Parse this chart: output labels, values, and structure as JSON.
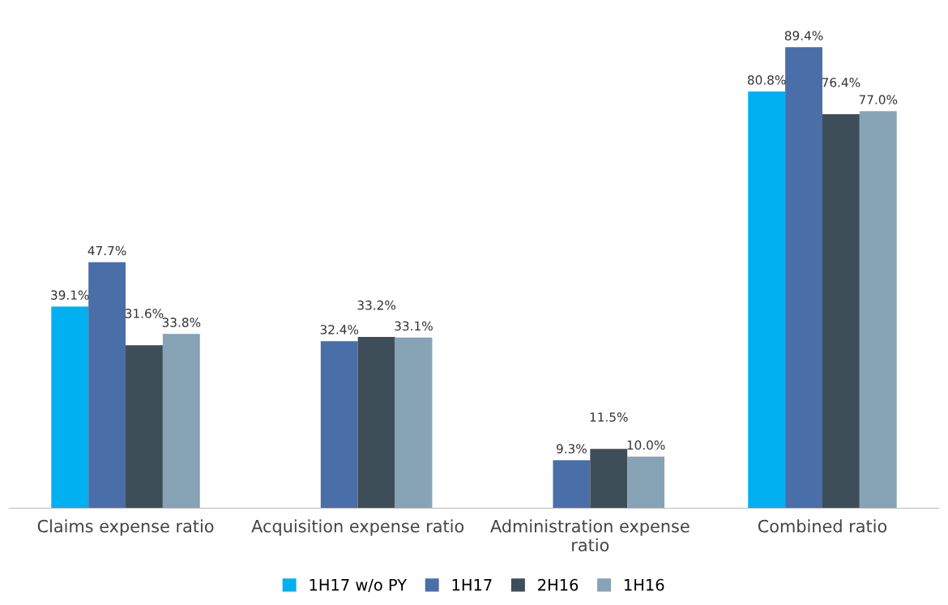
{
  "chart_data": {
    "type": "bar",
    "categories": [
      "Claims expense ratio",
      "Acquisition expense ratio",
      "Administration expense\nratio",
      "Combined ratio"
    ],
    "series": [
      {
        "name": "1H17 w/o PY",
        "color": "#00b0f0",
        "values": [
          39.1,
          null,
          null,
          80.8
        ],
        "value_labels": [
          "39.1%",
          null,
          null,
          "80.8%"
        ]
      },
      {
        "name": "1H17",
        "color": "#4a6ea8",
        "values": [
          47.7,
          32.4,
          9.3,
          89.4
        ],
        "value_labels": [
          "47.7%",
          "32.4%",
          "9.3%",
          "89.4%"
        ]
      },
      {
        "name": "2H16",
        "color": "#3e4e58",
        "values": [
          31.6,
          33.2,
          11.5,
          76.4
        ],
        "value_labels": [
          "31.6%",
          "33.2%",
          "11.5%",
          "76.4%"
        ]
      },
      {
        "name": "1H16",
        "color": "#87a3b6",
        "values": [
          33.8,
          33.1,
          10.0,
          77.0
        ],
        "value_labels": [
          "33.8%",
          "33.1%",
          "10.0%",
          "77.0%"
        ]
      }
    ],
    "grid": false,
    "legend": "bottom",
    "tick_labels": "x"
  }
}
